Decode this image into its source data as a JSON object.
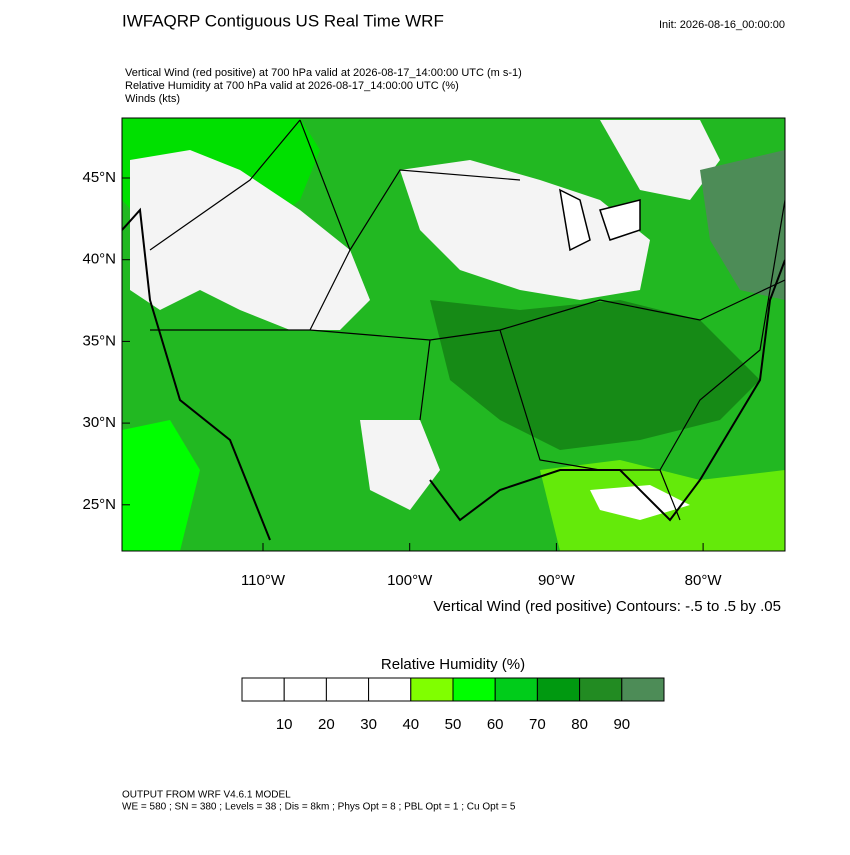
{
  "header": {
    "title": "IWFAQRP Contiguous US Real Time WRF",
    "init": "Init: 2026-08-16_00:00:00",
    "lines": [
      "Vertical Wind (red positive) at 700 hPa valid at 2026-08-17_14:00:00 UTC   (m s-1)",
      "Relative Humidity at 700 hPa valid at 2026-08-17_14:00:00 UTC   (%)",
      "Winds   (kts)"
    ]
  },
  "map": {
    "lat_labels": [
      "45°N",
      "40°N",
      "35°N",
      "30°N",
      "25°N"
    ],
    "lon_labels": [
      "110°W",
      "100°W",
      "90°W",
      "80°W"
    ],
    "contour_info": "Vertical Wind (red positive) Contours: -.5 to .5 by .05"
  },
  "colorbar": {
    "title": "Relative Humidity  (%)",
    "colors": [
      "#ffffff",
      "#ffffff",
      "#ffffff",
      "#ffffff",
      "#80ff00",
      "#00ff00",
      "#00cc1a",
      "#009910",
      "#228b22",
      "#4d8c57"
    ],
    "labels": [
      10,
      20,
      30,
      40,
      50,
      60,
      70,
      80,
      90
    ]
  },
  "footer": {
    "lines": [
      "OUTPUT FROM WRF V4.6.1 MODEL",
      "WE = 580 ; SN = 380 ; Levels = 38 ; Dis = 8km ; Phys Opt = 8 ; PBL Opt = 1 ; Cu Opt = 5"
    ]
  }
}
